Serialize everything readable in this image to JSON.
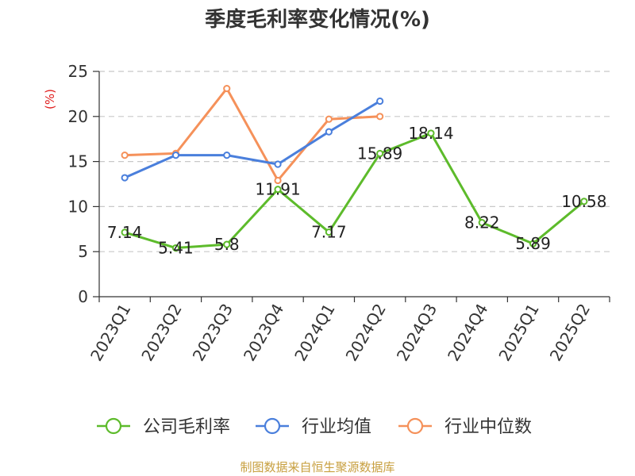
{
  "chart_data": {
    "type": "line",
    "title": "季度毛利率变化情况(%)",
    "ylabel": "(%)",
    "ylim": [
      0,
      25
    ],
    "yticks": [
      0,
      5,
      10,
      15,
      20,
      25
    ],
    "grid": "y-dashed",
    "legend_position": "bottom",
    "categories": [
      "2023Q1",
      "2023Q2",
      "2023Q3",
      "2023Q4",
      "2024Q1",
      "2024Q2",
      "2024Q3",
      "2024Q4",
      "2025Q1",
      "2025Q2"
    ],
    "series": [
      {
        "name": "公司毛利率",
        "color": "#5dbb2b",
        "values": [
          7.14,
          5.41,
          5.8,
          11.91,
          7.17,
          15.89,
          18.14,
          8.22,
          5.89,
          10.58
        ],
        "labels": [
          "7.14",
          "5.41",
          "5.8",
          "11.91",
          "7.17",
          "15.89",
          "18.14",
          "8.22",
          "5.89",
          "10.58"
        ]
      },
      {
        "name": "行业均值",
        "color": "#4a7fdc",
        "values": [
          13.2,
          15.7,
          15.7,
          14.7,
          18.3,
          21.7,
          null,
          null,
          null,
          null
        ]
      },
      {
        "name": "行业中位数",
        "color": "#f5915a",
        "values": [
          15.7,
          15.9,
          23.1,
          12.9,
          19.7,
          20.0,
          null,
          null,
          null,
          null
        ]
      }
    ],
    "source": "制图数据来自恒生聚源数据库"
  },
  "colors": {
    "title": "#333333",
    "axis": "#333333",
    "grid": "#c8c8c8",
    "unit_label": "#e01e1e",
    "source": "#c8a040"
  }
}
